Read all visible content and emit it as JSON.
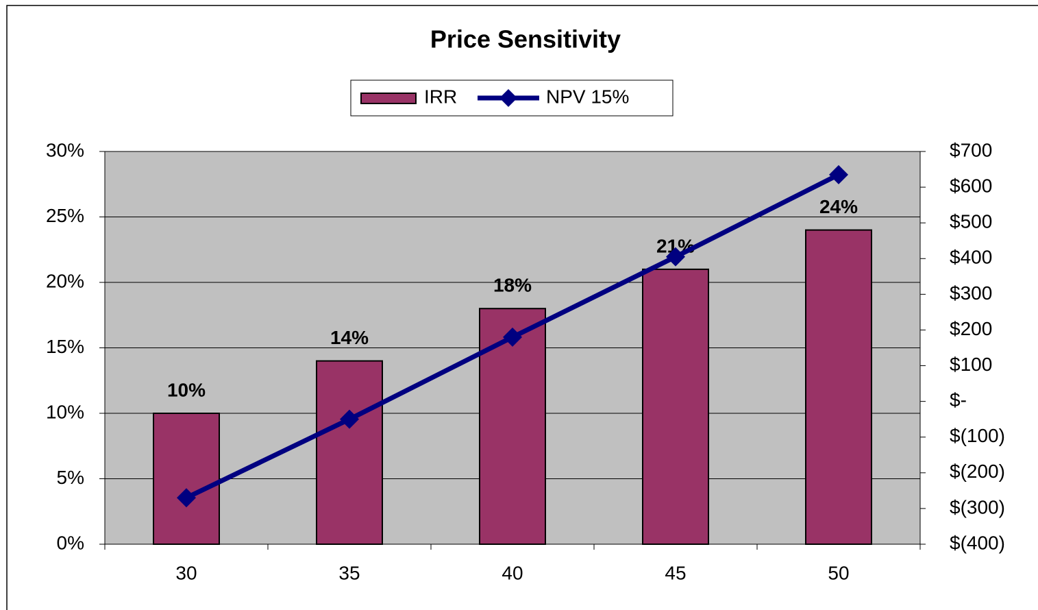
{
  "chart_data": {
    "type": "bar-line",
    "title": "Price Sensitivity",
    "categories": [
      "30",
      "35",
      "40",
      "45",
      "50"
    ],
    "series": [
      {
        "name": "IRR",
        "type": "bar",
        "color": "#993366",
        "values": [
          10,
          14,
          18,
          21,
          24
        ],
        "value_labels": [
          "10%",
          "14%",
          "18%",
          "21%",
          "24%"
        ]
      },
      {
        "name": "NPV 15%",
        "type": "line",
        "axis": "y2",
        "color": "#000080",
        "values": [
          -270,
          -50,
          180,
          405,
          635
        ]
      }
    ],
    "ylim": [
      0,
      30
    ],
    "yticks": [
      {
        "value": 0,
        "label": "0%"
      },
      {
        "value": 5,
        "label": "5%"
      },
      {
        "value": 10,
        "label": "10%"
      },
      {
        "value": 15,
        "label": "15%"
      },
      {
        "value": 20,
        "label": "20%"
      },
      {
        "value": 25,
        "label": "25%"
      },
      {
        "value": 30,
        "label": "30%"
      }
    ],
    "y2lim": [
      -400,
      700
    ],
    "y2ticks": [
      {
        "value": -400,
        "label": "$(400)"
      },
      {
        "value": -300,
        "label": "$(300)"
      },
      {
        "value": -200,
        "label": "$(200)"
      },
      {
        "value": -100,
        "label": "$(100)"
      },
      {
        "value": 0,
        "label": "$-"
      },
      {
        "value": 100,
        "label": "$100"
      },
      {
        "value": 200,
        "label": "$200"
      },
      {
        "value": 300,
        "label": "$300"
      },
      {
        "value": 400,
        "label": "$400"
      },
      {
        "value": 500,
        "label": "$500"
      },
      {
        "value": 600,
        "label": "$600"
      },
      {
        "value": 700,
        "label": "$700"
      }
    ],
    "grid": true,
    "plot_background": "#c0c0c0",
    "legend": "top"
  }
}
